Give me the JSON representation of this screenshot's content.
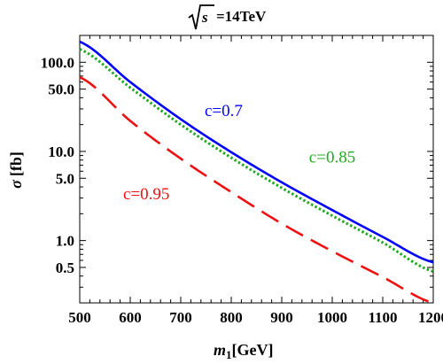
{
  "chart_data": {
    "type": "line",
    "title": {
      "sqrt_radicand": "s",
      "suffix": "=14TeV"
    },
    "xlabel": {
      "main": "m",
      "subscript": "1",
      "unit": "[GeV]"
    },
    "ylabel": {
      "symbol": "σ",
      "unit": "[fb]"
    },
    "xlim": [
      500,
      1200
    ],
    "ylim": [
      0.2,
      200
    ],
    "yscale": "log",
    "grid": false,
    "x_ticks": [
      {
        "value": 500,
        "label": "500"
      },
      {
        "value": 600,
        "label": "600"
      },
      {
        "value": 700,
        "label": "700"
      },
      {
        "value": 800,
        "label": "800"
      },
      {
        "value": 900,
        "label": "900"
      },
      {
        "value": 1000,
        "label": "1000"
      },
      {
        "value": 1100,
        "label": "1100"
      },
      {
        "value": 1200,
        "label": "1200"
      }
    ],
    "y_ticks": [
      {
        "value": 0.5,
        "label": "0.5"
      },
      {
        "value": 1,
        "label": "1.0"
      },
      {
        "value": 5,
        "label": "5.0"
      },
      {
        "value": 10,
        "label": "10.0"
      },
      {
        "value": 50,
        "label": "50.0"
      },
      {
        "value": 100,
        "label": "100.0"
      }
    ],
    "x": [
      500,
      600,
      700,
      800,
      900,
      1000,
      1100,
      1200
    ],
    "series": [
      {
        "name": "c=0.7",
        "color": "#0000ff",
        "style": "solid",
        "values": [
          170,
          60,
          23,
          9.8,
          4.5,
          2.2,
          1.1,
          0.57
        ],
        "label_at": [
          785,
          25
        ]
      },
      {
        "name": "c=0.85",
        "color": "#22aa22",
        "style": "dotted",
        "values": [
          140,
          52,
          20,
          8.5,
          3.9,
          1.9,
          0.95,
          0.45
        ],
        "label_at": [
          1000,
          7.5
        ]
      },
      {
        "name": "c=0.95",
        "color": "#ee1111",
        "style": "dashed",
        "values": [
          68,
          22,
          8.3,
          3.5,
          1.55,
          0.76,
          0.39,
          0.2
        ],
        "label_at": [
          632,
          2.9
        ]
      }
    ]
  }
}
